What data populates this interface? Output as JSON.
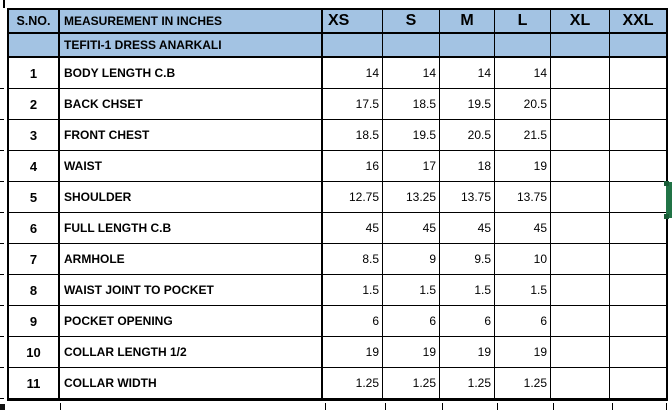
{
  "table": {
    "header": {
      "sno": "S.NO.",
      "measurement": "MEASUREMENT IN INCHES",
      "sizes": [
        "XS",
        "S",
        "M",
        "L",
        "XL",
        "XXL"
      ]
    },
    "subheader": "TEFITI-1 DRESS ANARKALI",
    "rows": [
      {
        "sno": "1",
        "label": "BODY LENGTH C.B",
        "values": [
          "14",
          "14",
          "14",
          "14",
          "",
          ""
        ]
      },
      {
        "sno": "2",
        "label": "BACK CHSET",
        "values": [
          "17.5",
          "18.5",
          "19.5",
          "20.5",
          "",
          ""
        ]
      },
      {
        "sno": "3",
        "label": "FRONT CHEST",
        "values": [
          "18.5",
          "19.5",
          "20.5",
          "21.5",
          "",
          ""
        ]
      },
      {
        "sno": "4",
        "label": "WAIST",
        "values": [
          "16",
          "17",
          "18",
          "19",
          "",
          ""
        ]
      },
      {
        "sno": "5",
        "label": "SHOULDER",
        "values": [
          "12.75",
          "13.25",
          "13.75",
          "13.75",
          "",
          ""
        ]
      },
      {
        "sno": "6",
        "label": "FULL LENGTH C.B",
        "values": [
          "45",
          "45",
          "45",
          "45",
          "",
          ""
        ]
      },
      {
        "sno": "7",
        "label": "ARMHOLE",
        "values": [
          "8.5",
          "9",
          "9.5",
          "10",
          "",
          ""
        ]
      },
      {
        "sno": "8",
        "label": "WAIST JOINT TO POCKET",
        "values": [
          "1.5",
          "1.5",
          "1.5",
          "1.5",
          "",
          ""
        ]
      },
      {
        "sno": "9",
        "label": "POCKET OPENING",
        "values": [
          "6",
          "6",
          "6",
          "6",
          "",
          ""
        ]
      },
      {
        "sno": "10",
        "label": "COLLAR LENGTH 1/2",
        "values": [
          "19",
          "19",
          "19",
          "19",
          "",
          ""
        ]
      },
      {
        "sno": "11",
        "label": "COLLAR WIDTH",
        "values": [
          "1.25",
          "1.25",
          "1.25",
          "1.25",
          "",
          ""
        ]
      }
    ],
    "colors": {
      "header_fill": "#a3c3e3",
      "grid_border": "#000000",
      "selection_green": "#217346"
    }
  }
}
